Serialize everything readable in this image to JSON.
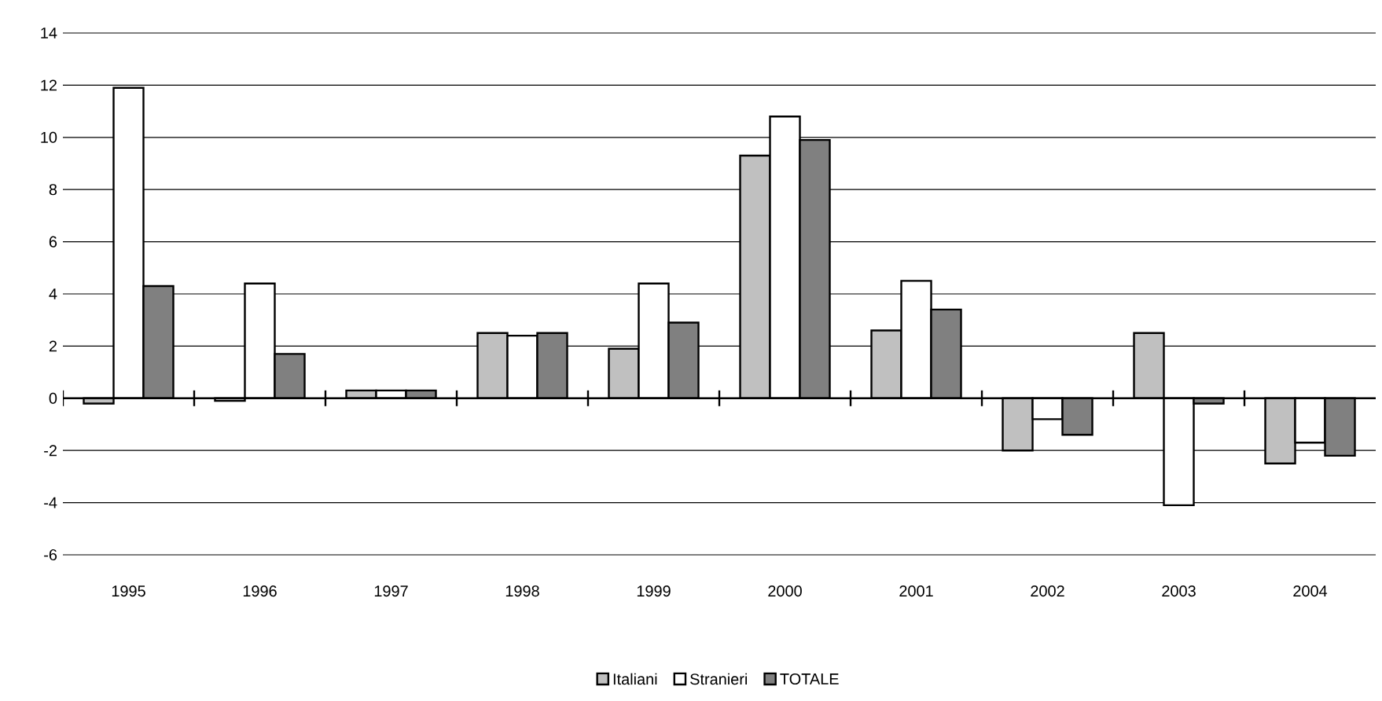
{
  "chart_data": {
    "type": "bar",
    "categories": [
      "1995",
      "1996",
      "1997",
      "1998",
      "1999",
      "2000",
      "2001",
      "2002",
      "2003",
      "2004"
    ],
    "series": [
      {
        "name": "Italiani",
        "color": "#c0c0c0",
        "values": [
          -0.2,
          -0.1,
          0.3,
          2.5,
          1.9,
          9.3,
          2.6,
          -2.0,
          2.5,
          -2.5
        ]
      },
      {
        "name": "Stranieri",
        "color": "#ffffff",
        "values": [
          11.9,
          4.4,
          0.3,
          2.4,
          4.4,
          10.8,
          4.5,
          -0.8,
          -4.1,
          -1.7
        ]
      },
      {
        "name": "TOTALE",
        "color": "#808080",
        "values": [
          4.3,
          1.7,
          0.3,
          2.5,
          2.9,
          9.9,
          3.4,
          -1.4,
          -0.2,
          -2.2
        ]
      }
    ],
    "ylim": [
      -6,
      14
    ],
    "yticks": [
      -6,
      -4,
      -2,
      0,
      2,
      4,
      6,
      8,
      10,
      12,
      14
    ],
    "grid": "y",
    "legend": "bottom"
  }
}
